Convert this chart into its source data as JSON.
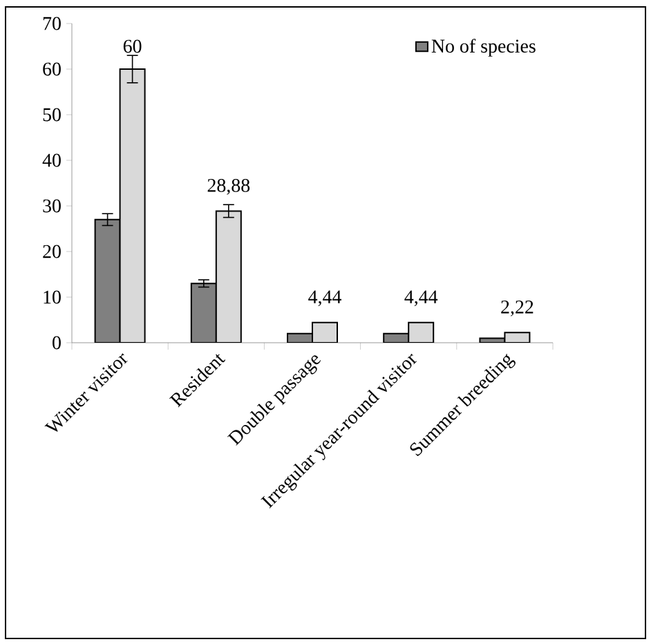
{
  "chart_data": {
    "type": "bar",
    "categories": [
      "Winter visitor",
      "Resident",
      "Double passage",
      "Irregular year-round visitor",
      "Summer breeding"
    ],
    "series": [
      {
        "name": "No of species",
        "color": "#808080",
        "values": [
          27,
          13,
          2,
          2,
          1
        ],
        "errors": [
          1.3,
          0.8,
          null,
          null,
          null
        ]
      },
      {
        "color": "#d9d9d9",
        "values": [
          60,
          28.88,
          4.44,
          4.44,
          2.22
        ],
        "errors": [
          3,
          1.4,
          null,
          null,
          null
        ],
        "value_labels": [
          "60",
          "28,88",
          "4,44",
          "4,44",
          "2,22"
        ]
      }
    ],
    "ylim": [
      0,
      70
    ],
    "yticks": [
      0,
      10,
      20,
      30,
      40,
      50,
      60,
      70
    ],
    "grid": false,
    "legend": "top right"
  }
}
